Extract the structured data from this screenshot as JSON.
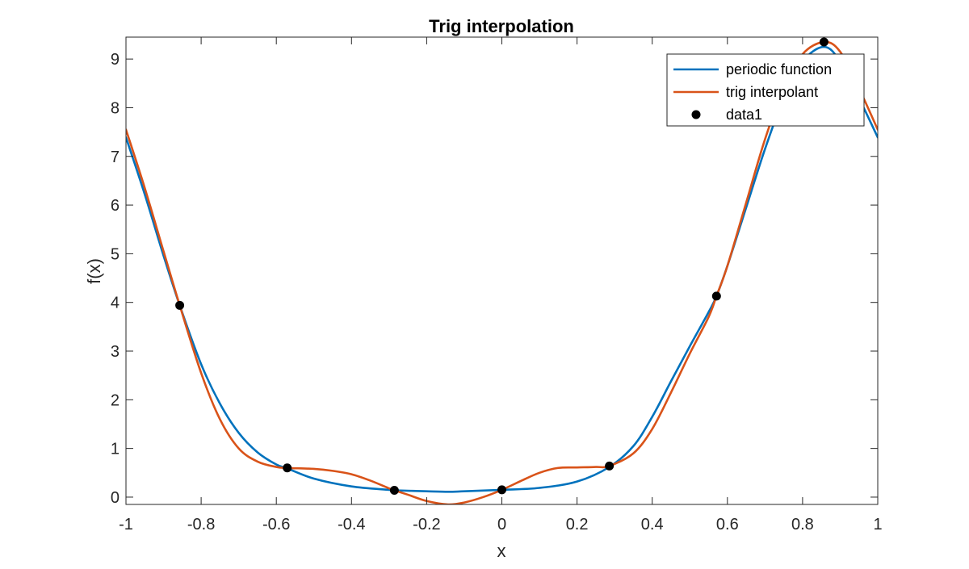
{
  "chart_data": {
    "type": "line",
    "title": "Trig interpolation",
    "xlabel": "x",
    "ylabel": "f(x)",
    "xlim": [
      -1,
      1
    ],
    "ylim": [
      -0.15,
      9.45
    ],
    "grid": false,
    "legend_position": "top-right",
    "x_ticks": [
      -1,
      -0.8,
      -0.6,
      -0.4,
      -0.2,
      0,
      0.2,
      0.4,
      0.6,
      0.8,
      1
    ],
    "x_tick_labels": [
      "-1",
      "-0.8",
      "-0.6",
      "-0.4",
      "-0.2",
      "0",
      "0.2",
      "0.4",
      "0.6",
      "0.8",
      "1"
    ],
    "y_ticks": [
      0,
      1,
      2,
      3,
      4,
      5,
      6,
      7,
      8,
      9
    ],
    "y_tick_labels": [
      "0",
      "1",
      "2",
      "3",
      "4",
      "5",
      "6",
      "7",
      "8",
      "9"
    ],
    "series": [
      {
        "name": "periodic function",
        "style": "line",
        "color": "#0072BD",
        "x": [
          -1.0,
          -0.95,
          -0.9,
          -0.857,
          -0.8,
          -0.75,
          -0.7,
          -0.65,
          -0.6,
          -0.571,
          -0.5,
          -0.4,
          -0.3,
          -0.286,
          -0.2,
          -0.143,
          -0.1,
          0.0,
          0.1,
          0.2,
          0.286,
          0.35,
          0.4,
          0.45,
          0.5,
          0.55,
          0.571,
          0.6,
          0.65,
          0.7,
          0.75,
          0.8,
          0.857,
          0.9,
          0.95,
          1.0
        ],
        "y": [
          7.39,
          6.22,
          4.96,
          3.94,
          2.73,
          1.92,
          1.32,
          0.92,
          0.67,
          0.59,
          0.38,
          0.22,
          0.15,
          0.14,
          0.12,
          0.11,
          0.12,
          0.15,
          0.19,
          0.32,
          0.62,
          1.05,
          1.65,
          2.38,
          3.1,
          3.8,
          4.13,
          4.75,
          5.95,
          7.15,
          8.2,
          8.95,
          9.25,
          8.95,
          8.2,
          7.39
        ]
      },
      {
        "name": "trig interpolant",
        "style": "line",
        "color": "#D95319",
        "x": [
          -1.0,
          -0.95,
          -0.9,
          -0.857,
          -0.8,
          -0.75,
          -0.7,
          -0.65,
          -0.6,
          -0.571,
          -0.5,
          -0.45,
          -0.4,
          -0.35,
          -0.3,
          -0.286,
          -0.25,
          -0.2,
          -0.143,
          -0.1,
          -0.05,
          0.0,
          0.05,
          0.1,
          0.15,
          0.2,
          0.25,
          0.286,
          0.35,
          0.4,
          0.45,
          0.5,
          0.55,
          0.571,
          0.6,
          0.65,
          0.7,
          0.75,
          0.8,
          0.857,
          0.9,
          0.95,
          1.0
        ],
        "y": [
          7.55,
          6.35,
          5.05,
          3.94,
          2.55,
          1.6,
          1.0,
          0.73,
          0.62,
          0.6,
          0.58,
          0.54,
          0.47,
          0.34,
          0.18,
          0.14,
          0.05,
          -0.08,
          -0.15,
          -0.11,
          0.0,
          0.15,
          0.33,
          0.5,
          0.6,
          0.61,
          0.62,
          0.64,
          0.9,
          1.4,
          2.15,
          2.95,
          3.7,
          4.13,
          4.75,
          6.05,
          7.35,
          8.4,
          9.1,
          9.35,
          9.15,
          8.4,
          7.55
        ]
      },
      {
        "name": "data1",
        "style": "markers",
        "color": "#000000",
        "x": [
          -0.857,
          -0.571,
          -0.286,
          0.0,
          0.286,
          0.571,
          0.857
        ],
        "y": [
          3.94,
          0.6,
          0.14,
          0.15,
          0.64,
          4.13,
          9.35
        ]
      }
    ]
  }
}
